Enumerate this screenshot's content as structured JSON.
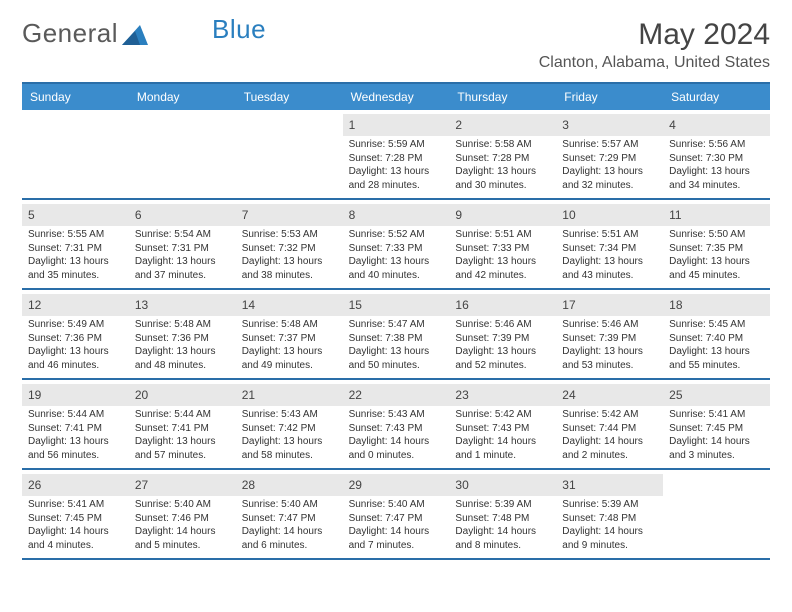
{
  "logo": {
    "word1": "General",
    "word2": "Blue"
  },
  "header": {
    "month_title": "May 2024",
    "location": "Clanton, Alabama, United States"
  },
  "weekday_labels": [
    "Sunday",
    "Monday",
    "Tuesday",
    "Wednesday",
    "Thursday",
    "Friday",
    "Saturday"
  ],
  "colors": {
    "header_bar": "#3b8ccc",
    "rule": "#2a6ea8",
    "date_bg": "#e8e8e8"
  },
  "weeks": [
    [
      {
        "date": "",
        "sunrise": "",
        "sunset": "",
        "daylight1": "",
        "daylight2": ""
      },
      {
        "date": "",
        "sunrise": "",
        "sunset": "",
        "daylight1": "",
        "daylight2": ""
      },
      {
        "date": "",
        "sunrise": "",
        "sunset": "",
        "daylight1": "",
        "daylight2": ""
      },
      {
        "date": "1",
        "sunrise": "Sunrise: 5:59 AM",
        "sunset": "Sunset: 7:28 PM",
        "daylight1": "Daylight: 13 hours",
        "daylight2": "and 28 minutes."
      },
      {
        "date": "2",
        "sunrise": "Sunrise: 5:58 AM",
        "sunset": "Sunset: 7:28 PM",
        "daylight1": "Daylight: 13 hours",
        "daylight2": "and 30 minutes."
      },
      {
        "date": "3",
        "sunrise": "Sunrise: 5:57 AM",
        "sunset": "Sunset: 7:29 PM",
        "daylight1": "Daylight: 13 hours",
        "daylight2": "and 32 minutes."
      },
      {
        "date": "4",
        "sunrise": "Sunrise: 5:56 AM",
        "sunset": "Sunset: 7:30 PM",
        "daylight1": "Daylight: 13 hours",
        "daylight2": "and 34 minutes."
      }
    ],
    [
      {
        "date": "5",
        "sunrise": "Sunrise: 5:55 AM",
        "sunset": "Sunset: 7:31 PM",
        "daylight1": "Daylight: 13 hours",
        "daylight2": "and 35 minutes."
      },
      {
        "date": "6",
        "sunrise": "Sunrise: 5:54 AM",
        "sunset": "Sunset: 7:31 PM",
        "daylight1": "Daylight: 13 hours",
        "daylight2": "and 37 minutes."
      },
      {
        "date": "7",
        "sunrise": "Sunrise: 5:53 AM",
        "sunset": "Sunset: 7:32 PM",
        "daylight1": "Daylight: 13 hours",
        "daylight2": "and 38 minutes."
      },
      {
        "date": "8",
        "sunrise": "Sunrise: 5:52 AM",
        "sunset": "Sunset: 7:33 PM",
        "daylight1": "Daylight: 13 hours",
        "daylight2": "and 40 minutes."
      },
      {
        "date": "9",
        "sunrise": "Sunrise: 5:51 AM",
        "sunset": "Sunset: 7:33 PM",
        "daylight1": "Daylight: 13 hours",
        "daylight2": "and 42 minutes."
      },
      {
        "date": "10",
        "sunrise": "Sunrise: 5:51 AM",
        "sunset": "Sunset: 7:34 PM",
        "daylight1": "Daylight: 13 hours",
        "daylight2": "and 43 minutes."
      },
      {
        "date": "11",
        "sunrise": "Sunrise: 5:50 AM",
        "sunset": "Sunset: 7:35 PM",
        "daylight1": "Daylight: 13 hours",
        "daylight2": "and 45 minutes."
      }
    ],
    [
      {
        "date": "12",
        "sunrise": "Sunrise: 5:49 AM",
        "sunset": "Sunset: 7:36 PM",
        "daylight1": "Daylight: 13 hours",
        "daylight2": "and 46 minutes."
      },
      {
        "date": "13",
        "sunrise": "Sunrise: 5:48 AM",
        "sunset": "Sunset: 7:36 PM",
        "daylight1": "Daylight: 13 hours",
        "daylight2": "and 48 minutes."
      },
      {
        "date": "14",
        "sunrise": "Sunrise: 5:48 AM",
        "sunset": "Sunset: 7:37 PM",
        "daylight1": "Daylight: 13 hours",
        "daylight2": "and 49 minutes."
      },
      {
        "date": "15",
        "sunrise": "Sunrise: 5:47 AM",
        "sunset": "Sunset: 7:38 PM",
        "daylight1": "Daylight: 13 hours",
        "daylight2": "and 50 minutes."
      },
      {
        "date": "16",
        "sunrise": "Sunrise: 5:46 AM",
        "sunset": "Sunset: 7:39 PM",
        "daylight1": "Daylight: 13 hours",
        "daylight2": "and 52 minutes."
      },
      {
        "date": "17",
        "sunrise": "Sunrise: 5:46 AM",
        "sunset": "Sunset: 7:39 PM",
        "daylight1": "Daylight: 13 hours",
        "daylight2": "and 53 minutes."
      },
      {
        "date": "18",
        "sunrise": "Sunrise: 5:45 AM",
        "sunset": "Sunset: 7:40 PM",
        "daylight1": "Daylight: 13 hours",
        "daylight2": "and 55 minutes."
      }
    ],
    [
      {
        "date": "19",
        "sunrise": "Sunrise: 5:44 AM",
        "sunset": "Sunset: 7:41 PM",
        "daylight1": "Daylight: 13 hours",
        "daylight2": "and 56 minutes."
      },
      {
        "date": "20",
        "sunrise": "Sunrise: 5:44 AM",
        "sunset": "Sunset: 7:41 PM",
        "daylight1": "Daylight: 13 hours",
        "daylight2": "and 57 minutes."
      },
      {
        "date": "21",
        "sunrise": "Sunrise: 5:43 AM",
        "sunset": "Sunset: 7:42 PM",
        "daylight1": "Daylight: 13 hours",
        "daylight2": "and 58 minutes."
      },
      {
        "date": "22",
        "sunrise": "Sunrise: 5:43 AM",
        "sunset": "Sunset: 7:43 PM",
        "daylight1": "Daylight: 14 hours",
        "daylight2": "and 0 minutes."
      },
      {
        "date": "23",
        "sunrise": "Sunrise: 5:42 AM",
        "sunset": "Sunset: 7:43 PM",
        "daylight1": "Daylight: 14 hours",
        "daylight2": "and 1 minute."
      },
      {
        "date": "24",
        "sunrise": "Sunrise: 5:42 AM",
        "sunset": "Sunset: 7:44 PM",
        "daylight1": "Daylight: 14 hours",
        "daylight2": "and 2 minutes."
      },
      {
        "date": "25",
        "sunrise": "Sunrise: 5:41 AM",
        "sunset": "Sunset: 7:45 PM",
        "daylight1": "Daylight: 14 hours",
        "daylight2": "and 3 minutes."
      }
    ],
    [
      {
        "date": "26",
        "sunrise": "Sunrise: 5:41 AM",
        "sunset": "Sunset: 7:45 PM",
        "daylight1": "Daylight: 14 hours",
        "daylight2": "and 4 minutes."
      },
      {
        "date": "27",
        "sunrise": "Sunrise: 5:40 AM",
        "sunset": "Sunset: 7:46 PM",
        "daylight1": "Daylight: 14 hours",
        "daylight2": "and 5 minutes."
      },
      {
        "date": "28",
        "sunrise": "Sunrise: 5:40 AM",
        "sunset": "Sunset: 7:47 PM",
        "daylight1": "Daylight: 14 hours",
        "daylight2": "and 6 minutes."
      },
      {
        "date": "29",
        "sunrise": "Sunrise: 5:40 AM",
        "sunset": "Sunset: 7:47 PM",
        "daylight1": "Daylight: 14 hours",
        "daylight2": "and 7 minutes."
      },
      {
        "date": "30",
        "sunrise": "Sunrise: 5:39 AM",
        "sunset": "Sunset: 7:48 PM",
        "daylight1": "Daylight: 14 hours",
        "daylight2": "and 8 minutes."
      },
      {
        "date": "31",
        "sunrise": "Sunrise: 5:39 AM",
        "sunset": "Sunset: 7:48 PM",
        "daylight1": "Daylight: 14 hours",
        "daylight2": "and 9 minutes."
      },
      {
        "date": "",
        "sunrise": "",
        "sunset": "",
        "daylight1": "",
        "daylight2": ""
      }
    ]
  ]
}
